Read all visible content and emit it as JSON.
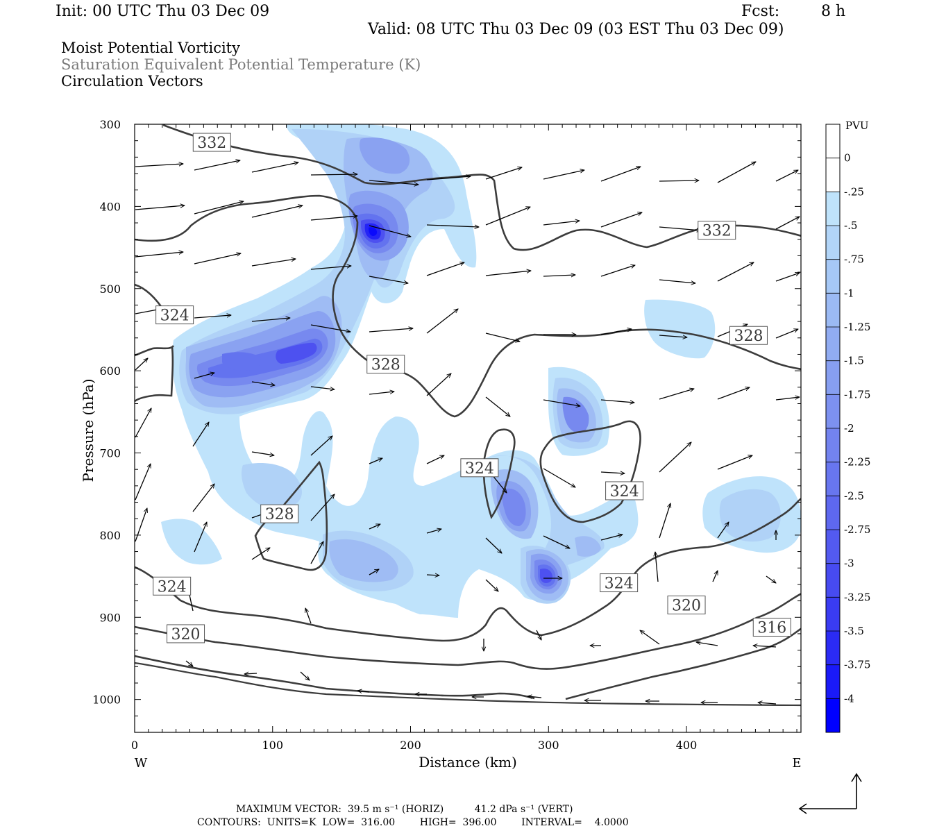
{
  "header": {
    "init": "Init: 00 UTC Thu 03 Dec 09",
    "fcst_label": "Fcst:",
    "fcst_value": "8 h",
    "valid": "Valid: 08 UTC Thu 03 Dec 09 (03 EST Thu 03 Dec 09)",
    "field1": "Moist Potential Vorticity",
    "field2": "Saturation Equivalent Potential Temperature (K)",
    "field3": "Circulation Vectors"
  },
  "footer": {
    "line1": "MAXIMUM VECTOR:  39.5 m s⁻¹ (HORIZ)          41.2 dPa s⁻¹ (VERT)",
    "line2": "CONTOURS:  UNITS=K  LOW=  316.00        HIGH=  396.00        INTERVAL=    4.0000"
  },
  "chart_data": {
    "type": "heatmap",
    "xlabel": "Distance (km)",
    "ylabel": "Pressure (hPa)",
    "xlim": [
      0,
      483
    ],
    "ylim": [
      300,
      1040
    ],
    "x_ticks": [
      "0",
      "100",
      "200",
      "300",
      "400"
    ],
    "x_tick_values": [
      0,
      100,
      200,
      300,
      400
    ],
    "y_ticks": [
      "300",
      "400",
      "500",
      "600",
      "700",
      "800",
      "900",
      "1000"
    ],
    "y_tick_values": [
      300,
      400,
      500,
      600,
      700,
      800,
      900,
      1000
    ],
    "x_end_labels": {
      "left": "W",
      "right": "E"
    },
    "colorbar": {
      "unit": "PVU",
      "labels": [
        "0",
        "-.25",
        "-.5",
        "-.75",
        "-1",
        "-1.25",
        "-1.5",
        "-1.75",
        "-2",
        "-2.25",
        "-2.5",
        "-2.75",
        "-3",
        "-3.25",
        "-3.5",
        "-3.75",
        "-4"
      ],
      "colors": [
        "#ffffff",
        "#ffffff",
        "#bfe3fb",
        "#b2d5f8",
        "#a6c8f6",
        "#9bbaf4",
        "#91acf2",
        "#879ff1",
        "#7d91f0",
        "#7383ef",
        "#6876ef",
        "#5e68ef",
        "#535af0",
        "#474bf1",
        "#3a3cf3",
        "#2b2bf5",
        "#1a1af8",
        "#0000ff"
      ]
    },
    "mpv_field": [
      {
        "x": 47,
        "p": 575,
        "v": -2.3
      },
      {
        "x": 75,
        "p": 580,
        "v": -2.4
      },
      {
        "x": 120,
        "p": 555,
        "v": -2.7
      },
      {
        "x": 135,
        "p": 545,
        "v": -2.4
      },
      {
        "x": 172,
        "p": 420,
        "v": -3.9
      },
      {
        "x": 180,
        "p": 350,
        "v": -2.3
      },
      {
        "x": 320,
        "p": 660,
        "v": -2.3
      },
      {
        "x": 285,
        "p": 755,
        "v": -2.6
      },
      {
        "x": 300,
        "p": 850,
        "v": -3.6
      },
      {
        "x": 155,
        "p": 835,
        "v": -2.1
      },
      {
        "x": 95,
        "p": 760,
        "v": -1.2
      },
      {
        "x": 45,
        "p": 810,
        "v": -1.1
      },
      {
        "x": 460,
        "p": 755,
        "v": -1.0
      },
      {
        "x": 410,
        "p": 565,
        "v": -0.6
      },
      {
        "x": 225,
        "p": 380,
        "v": -0.7
      },
      {
        "x": 335,
        "p": 805,
        "v": -1.6
      }
    ],
    "theta_e_contours": [
      {
        "label": "332",
        "label_at": {
          "x": 56,
          "p": 322
        }
      },
      {
        "label": "332",
        "label_at": {
          "x": 422,
          "p": 429
        }
      },
      {
        "label": "328",
        "label_at": {
          "x": 182,
          "p": 592
        }
      },
      {
        "label": "328",
        "label_at": {
          "x": 445,
          "p": 557
        }
      },
      {
        "label": "328",
        "label_at": {
          "x": 105,
          "p": 774
        }
      },
      {
        "label": "324",
        "label_at": {
          "x": 29,
          "p": 532
        }
      },
      {
        "label": "324",
        "label_at": {
          "x": 250,
          "p": 718
        }
      },
      {
        "label": "324",
        "label_at": {
          "x": 355,
          "p": 746
        }
      },
      {
        "label": "324",
        "label_at": {
          "x": 27,
          "p": 862
        }
      },
      {
        "label": "324",
        "label_at": {
          "x": 351,
          "p": 858
        }
      },
      {
        "label": "320",
        "label_at": {
          "x": 37,
          "p": 920
        }
      },
      {
        "label": "320",
        "label_at": {
          "x": 400,
          "p": 885
        }
      },
      {
        "label": "316",
        "label_at": {
          "x": 462,
          "p": 912
        }
      }
    ]
  }
}
